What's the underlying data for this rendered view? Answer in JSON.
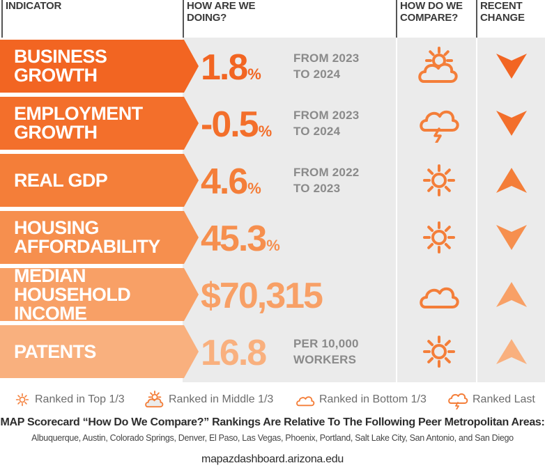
{
  "headers": {
    "indicator": [
      "INDICATOR"
    ],
    "how": [
      "HOW ARE WE",
      "DOING?"
    ],
    "compare": [
      "HOW DO WE",
      "COMPARE?"
    ],
    "change": [
      "RECENT",
      "CHANGE"
    ]
  },
  "colors": {
    "row_colors": [
      "#f26522",
      "#f36f2b",
      "#f47e39",
      "#f68f4e",
      "#f8a066",
      "#f9b07e"
    ],
    "panel": "#ebebeb",
    "icon": "#f47e39"
  },
  "chart_data": {
    "type": "table",
    "columns": [
      "INDICATOR",
      "HOW ARE WE DOING?",
      "HOW DO WE COMPARE?",
      "RECENT CHANGE"
    ],
    "rows": [
      {
        "indicator": [
          "BUSINESS GROWTH"
        ],
        "value": "1.8",
        "unit": "%",
        "period": [
          "FROM 2023",
          "TO 2024"
        ],
        "rank": "middle",
        "change": "down"
      },
      {
        "indicator": [
          "EMPLOYMENT",
          "GROWTH"
        ],
        "value": "-0.5",
        "unit": "%",
        "period": [
          "FROM 2023",
          "TO 2024"
        ],
        "rank": "last",
        "change": "down"
      },
      {
        "indicator": [
          "REAL GDP"
        ],
        "value": "4.6",
        "unit": "%",
        "period": [
          "FROM 2022",
          "TO 2023"
        ],
        "rank": "top",
        "change": "up"
      },
      {
        "indicator": [
          "HOUSING",
          "AFFORDABILITY"
        ],
        "value": "45.3",
        "unit": "%",
        "period": [],
        "rank": "top",
        "change": "down"
      },
      {
        "indicator": [
          "MEDIAN HOUSEHOLD",
          "INCOME"
        ],
        "value": "$70,315",
        "unit": "",
        "period": [],
        "rank": "bottom",
        "change": "up"
      },
      {
        "indicator": [
          "PATENTS"
        ],
        "value": "16.8",
        "unit": "",
        "period": [
          "PER 10,000",
          "WORKERS"
        ],
        "rank": "top",
        "change": "up"
      }
    ]
  },
  "legend": {
    "top": "Ranked in Top 1/3",
    "middle": "Ranked in Middle 1/3",
    "bottom": "Ranked in Bottom 1/3",
    "last": "Ranked Last"
  },
  "icons": {
    "top": "sun-icon",
    "middle": "partly-cloudy-icon",
    "bottom": "cloud-icon",
    "last": "storm-cloud-icon",
    "up": "arrow-up-icon",
    "down": "arrow-down-icon"
  },
  "footer": {
    "title": "MAP Scorecard “How Do We Compare?” Rankings Are Relative To The Following Peer Metropolitan Areas:",
    "areas": "Albuquerque, Austin, Colorado Springs, Denver, El Paso, Las Vegas, Phoenix, Portland, Salt Lake City, San Antonio, and San Diego",
    "site": "mapazdashboard.arizona.edu"
  }
}
